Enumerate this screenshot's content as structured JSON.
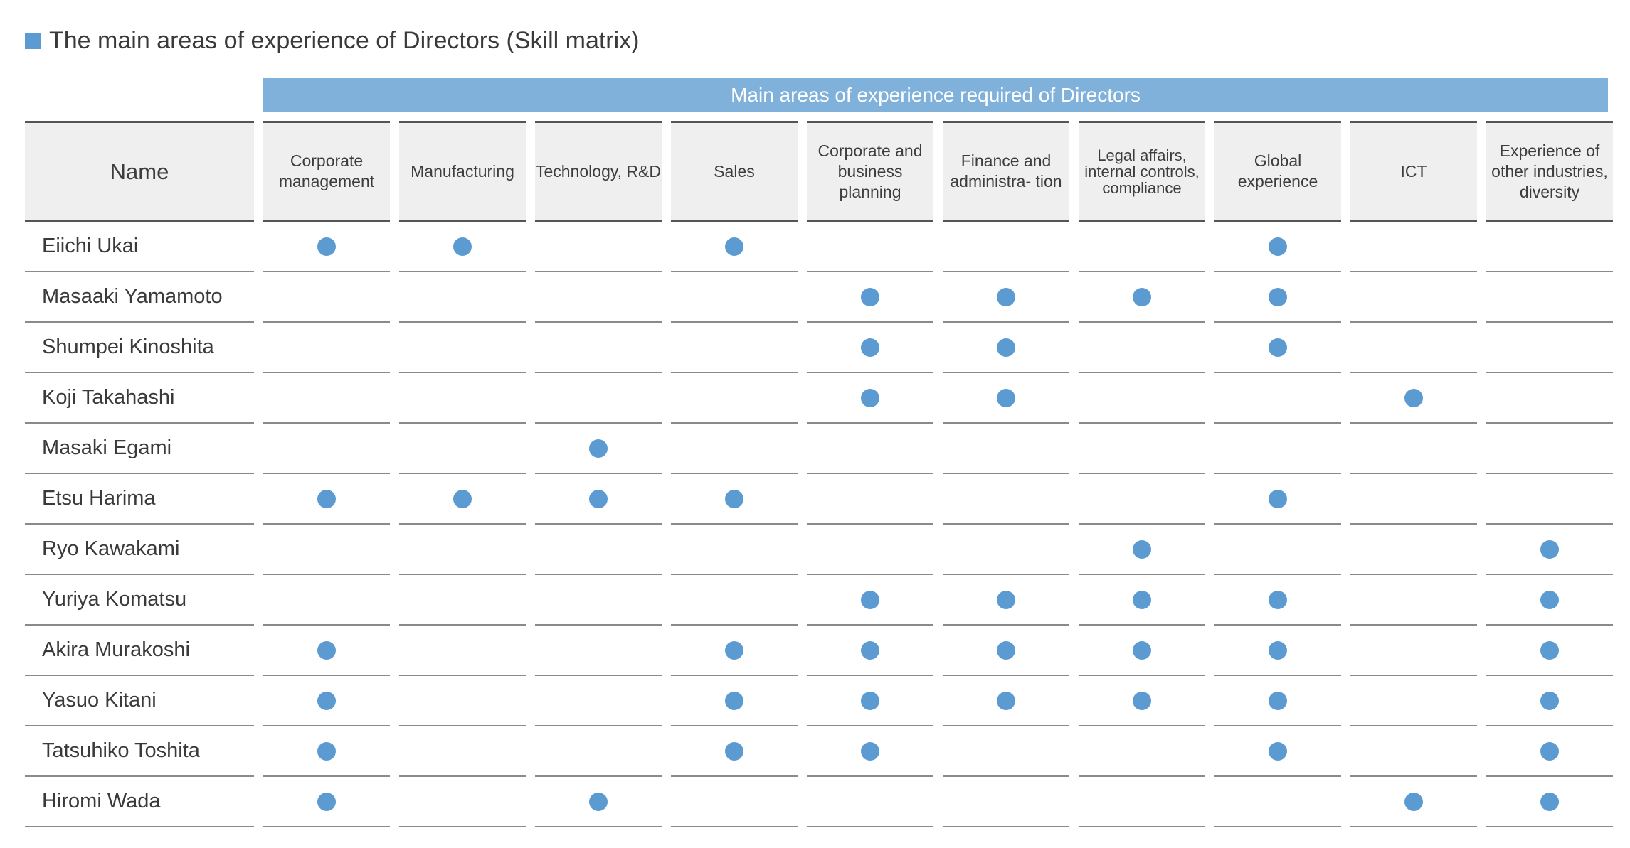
{
  "title": "The main areas of experience of Directors (Skill matrix)",
  "accent_color": "#5b9bd1",
  "banner": "Main areas of experience required of Directors",
  "name_header": "Name",
  "columns": [
    "Corporate management",
    "Manufacturing",
    "Technology, R&D",
    "Sales",
    "Corporate and business planning",
    "Finance and administra- tion",
    "Legal affairs, internal controls, compliance",
    "Global experience",
    "ICT",
    "Experience of other industries, diversity"
  ],
  "directors": [
    {
      "name": "Eiichi Ukai",
      "skills": [
        true,
        true,
        false,
        true,
        false,
        false,
        false,
        true,
        false,
        false
      ]
    },
    {
      "name": "Masaaki Yamamoto",
      "skills": [
        false,
        false,
        false,
        false,
        true,
        true,
        true,
        true,
        false,
        false
      ]
    },
    {
      "name": "Shumpei Kinoshita",
      "skills": [
        false,
        false,
        false,
        false,
        true,
        true,
        false,
        true,
        false,
        false
      ]
    },
    {
      "name": "Koji Takahashi",
      "skills": [
        false,
        false,
        false,
        false,
        true,
        true,
        false,
        false,
        true,
        false
      ]
    },
    {
      "name": "Masaki Egami",
      "skills": [
        false,
        false,
        true,
        false,
        false,
        false,
        false,
        false,
        false,
        false
      ]
    },
    {
      "name": "Etsu Harima",
      "skills": [
        true,
        true,
        true,
        true,
        false,
        false,
        false,
        true,
        false,
        false
      ]
    },
    {
      "name": "Ryo Kawakami",
      "skills": [
        false,
        false,
        false,
        false,
        false,
        false,
        true,
        false,
        false,
        true
      ]
    },
    {
      "name": "Yuriya Komatsu",
      "skills": [
        false,
        false,
        false,
        false,
        true,
        true,
        true,
        true,
        false,
        true
      ]
    },
    {
      "name": "Akira Murakoshi",
      "skills": [
        true,
        false,
        false,
        true,
        true,
        true,
        true,
        true,
        false,
        true
      ]
    },
    {
      "name": "Yasuo Kitani",
      "skills": [
        true,
        false,
        false,
        true,
        true,
        true,
        true,
        true,
        false,
        true
      ]
    },
    {
      "name": "Tatsuhiko Toshita",
      "skills": [
        true,
        false,
        false,
        true,
        true,
        false,
        false,
        true,
        false,
        true
      ]
    },
    {
      "name": "Hiromi Wada",
      "skills": [
        true,
        false,
        true,
        false,
        false,
        false,
        false,
        false,
        true,
        true
      ]
    }
  ]
}
